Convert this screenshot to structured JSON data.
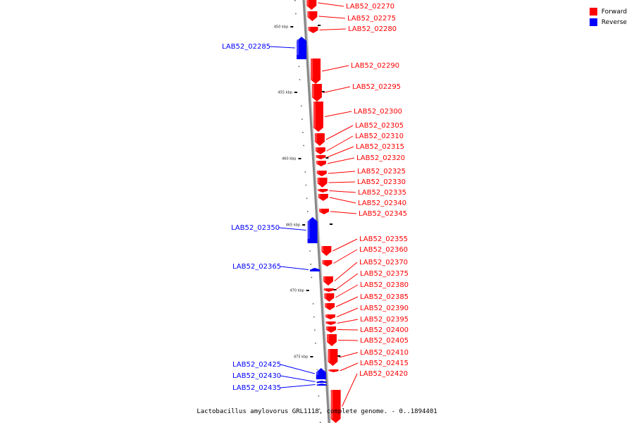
{
  "legend": [
    {
      "label": "Forward",
      "color": "#ff0000"
    },
    {
      "label": "Reverse",
      "color": "#0000ff"
    }
  ],
  "caption": "Lactobacillus amylovorus GRL1118, complete genome. - 0..1894401",
  "colors": {
    "forward": "#ff0000",
    "reverse": "#0000ff",
    "backbone": "#888888"
  },
  "tick_labels": [
    "450 kbp",
    "455 kbp",
    "460 kbp",
    "465 kbp",
    "470 kbp",
    "475 kbp"
  ],
  "genes": [
    {
      "id": "LAB52_02270",
      "strand": "forward"
    },
    {
      "id": "LAB52_02275",
      "strand": "forward"
    },
    {
      "id": "LAB52_02280",
      "strand": "forward"
    },
    {
      "id": "LAB52_02285",
      "strand": "reverse"
    },
    {
      "id": "LAB52_02290",
      "strand": "forward"
    },
    {
      "id": "LAB52_02295",
      "strand": "forward"
    },
    {
      "id": "LAB52_02300",
      "strand": "forward"
    },
    {
      "id": "LAB52_02305",
      "strand": "forward"
    },
    {
      "id": "LAB52_02310",
      "strand": "forward"
    },
    {
      "id": "LAB52_02315",
      "strand": "forward"
    },
    {
      "id": "LAB52_02320",
      "strand": "forward"
    },
    {
      "id": "LAB52_02325",
      "strand": "forward"
    },
    {
      "id": "LAB52_02330",
      "strand": "forward"
    },
    {
      "id": "LAB52_02335",
      "strand": "forward"
    },
    {
      "id": "LAB52_02340",
      "strand": "forward"
    },
    {
      "id": "LAB52_02345",
      "strand": "forward"
    },
    {
      "id": "LAB52_02350",
      "strand": "reverse"
    },
    {
      "id": "LAB52_02355",
      "strand": "forward"
    },
    {
      "id": "LAB52_02360",
      "strand": "forward"
    },
    {
      "id": "LAB52_02365",
      "strand": "reverse"
    },
    {
      "id": "LAB52_02370",
      "strand": "forward"
    },
    {
      "id": "LAB52_02375",
      "strand": "forward"
    },
    {
      "id": "LAB52_02380",
      "strand": "forward"
    },
    {
      "id": "LAB52_02385",
      "strand": "forward"
    },
    {
      "id": "LAB52_02390",
      "strand": "forward"
    },
    {
      "id": "LAB52_02395",
      "strand": "forward"
    },
    {
      "id": "LAB52_02400",
      "strand": "forward"
    },
    {
      "id": "LAB52_02405",
      "strand": "forward"
    },
    {
      "id": "LAB52_02410",
      "strand": "forward"
    },
    {
      "id": "LAB52_02415",
      "strand": "forward"
    },
    {
      "id": "LAB52_02420",
      "strand": "forward"
    },
    {
      "id": "LAB52_02425",
      "strand": "reverse"
    },
    {
      "id": "LAB52_02430",
      "strand": "reverse"
    },
    {
      "id": "LAB52_02435",
      "strand": "reverse"
    }
  ]
}
